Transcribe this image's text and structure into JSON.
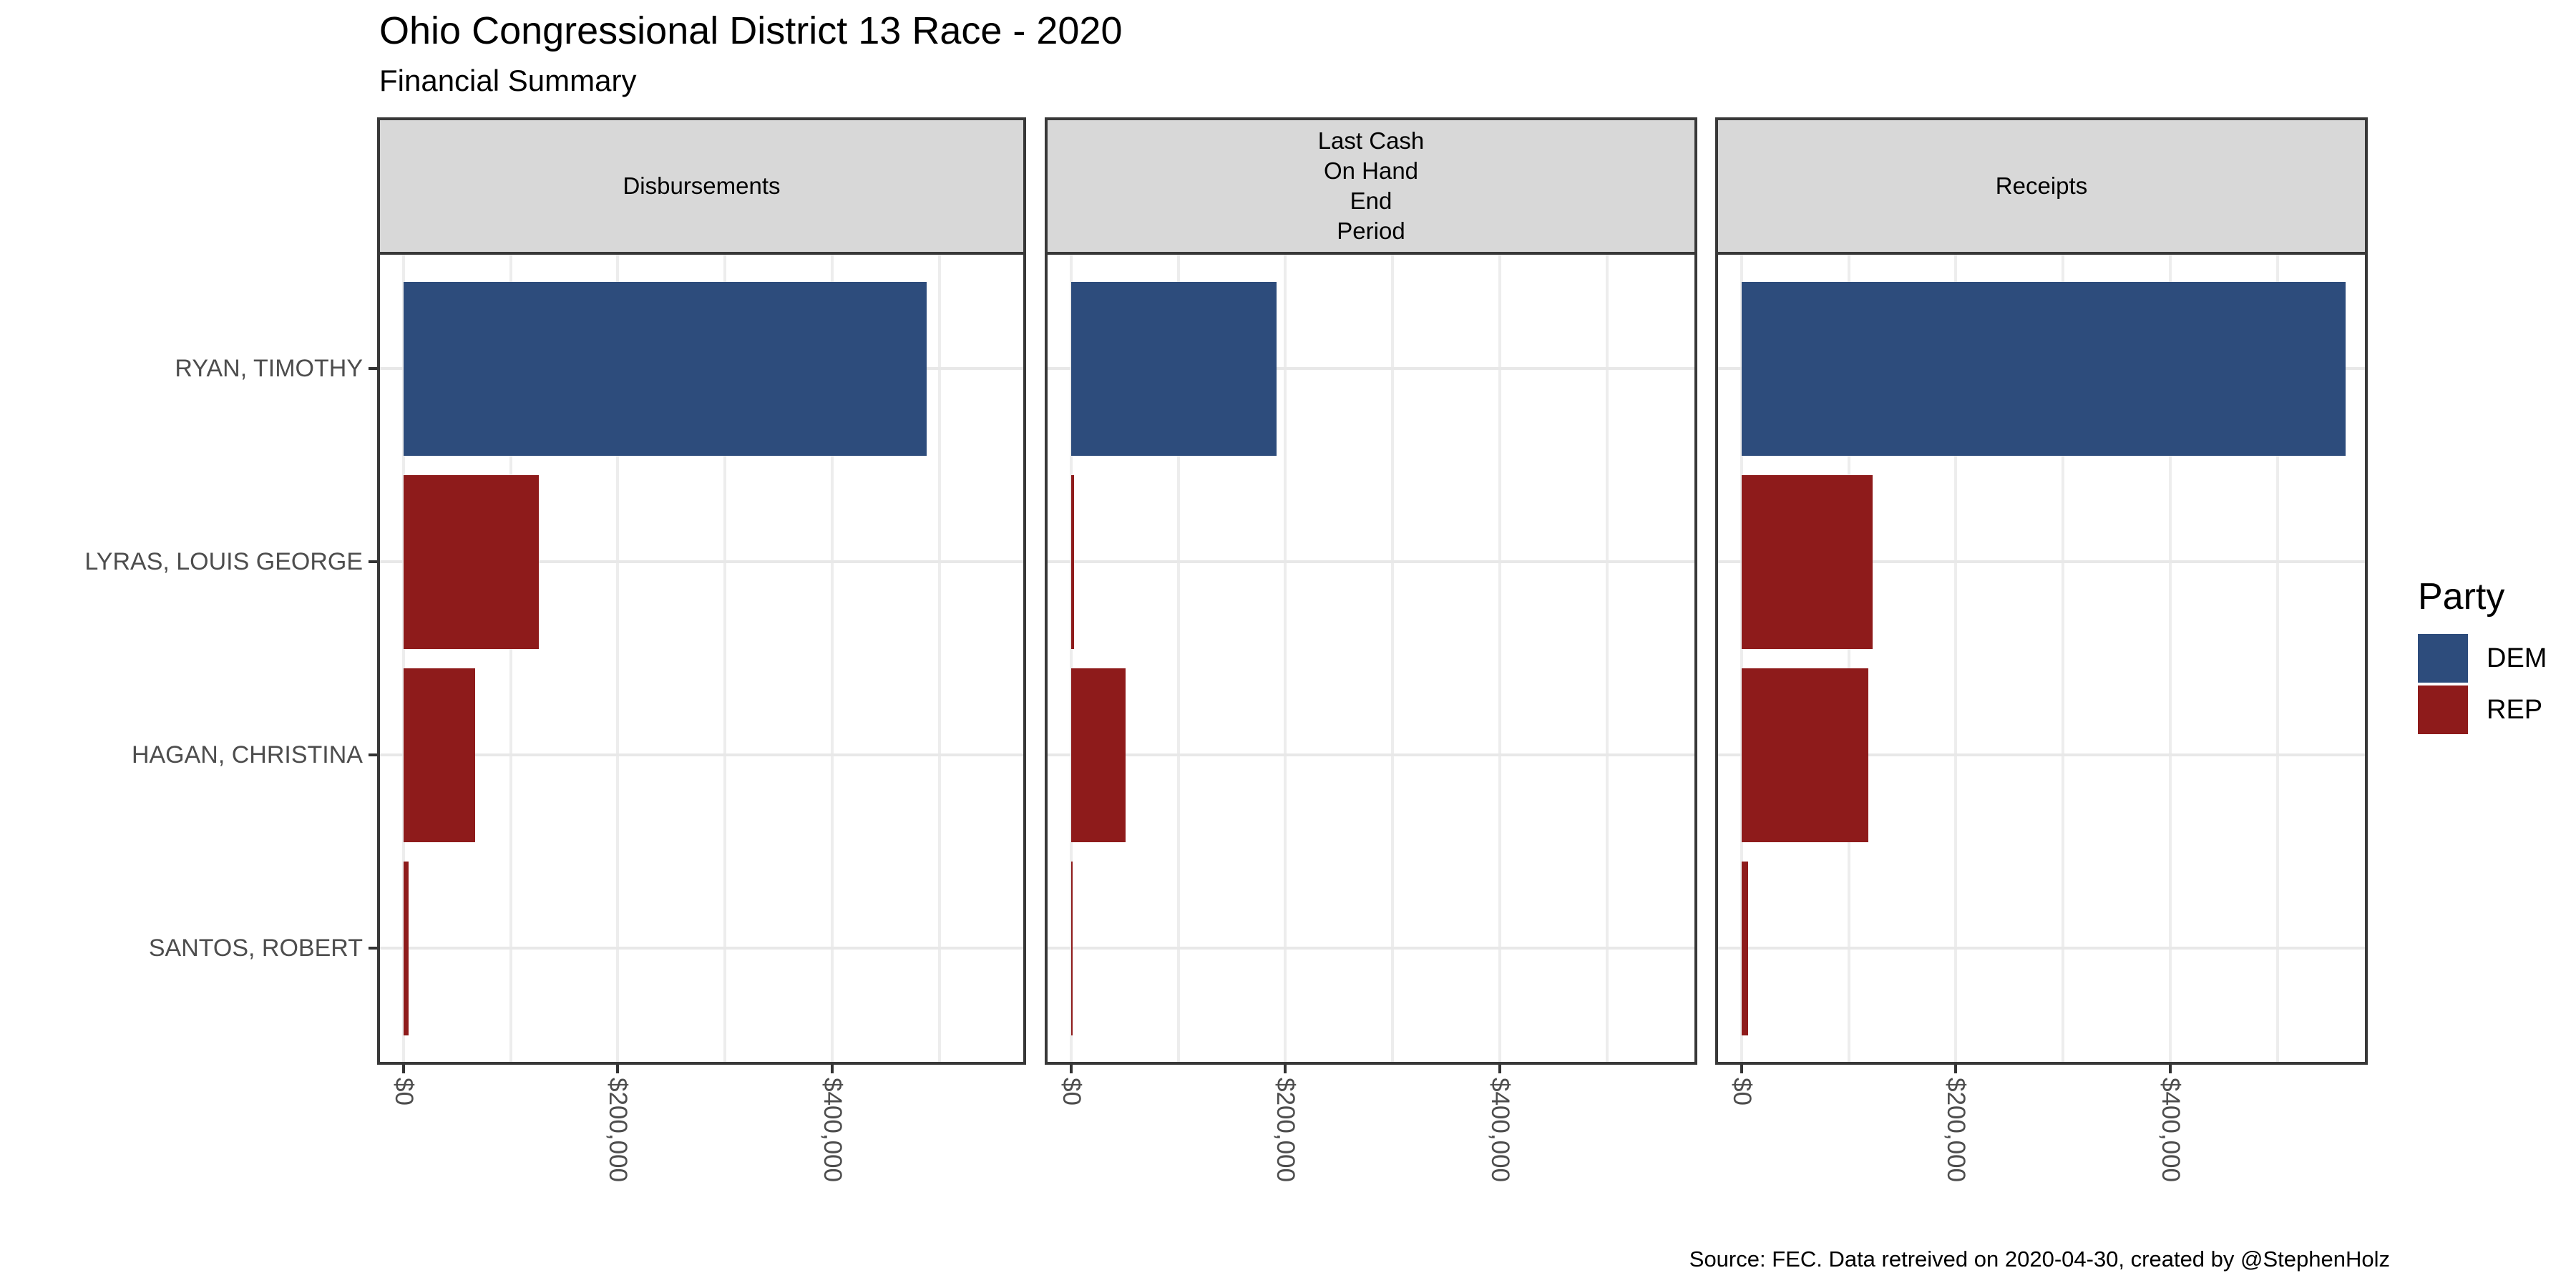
{
  "title": "Ohio Congressional District 13 Race - 2020",
  "subtitle": "Financial Summary",
  "caption": "Source: FEC. Data retreived on 2020-04-30, created by @StephenHolz",
  "legend": {
    "title": "Party",
    "entries": [
      {
        "label": "DEM",
        "color": "#2D4C7C"
      },
      {
        "label": "REP",
        "color": "#8E1B1B"
      }
    ]
  },
  "chart_data": {
    "type": "bar",
    "orientation": "horizontal",
    "title": "Ohio Congressional District 13 Race - 2020",
    "subtitle": "Financial Summary",
    "facet_labels": [
      "Disbursements",
      "Last Cash\nOn Hand\nEnd\nPeriod",
      "Receipts"
    ],
    "categories": [
      "RYAN, TIMOTHY",
      "LYRAS, LOUIS GEORGE",
      "HAGAN, CHRISTINA",
      "SANTOS, ROBERT"
    ],
    "category_parties": [
      "DEM",
      "REP",
      "REP",
      "REP"
    ],
    "series": [
      {
        "facet": "Disbursements",
        "values": [
          488000,
          126000,
          67000,
          5000
        ]
      },
      {
        "facet": "Last Cash On Hand End Period",
        "values": [
          192000,
          3000,
          51000,
          1500
        ]
      },
      {
        "facet": "Receipts",
        "values": [
          564000,
          122000,
          118000,
          6000
        ]
      }
    ],
    "value_unit": "USD",
    "x_axis": {
      "tick_values": [
        0,
        200000,
        400000
      ],
      "tick_labels": [
        "$0",
        "$200,000",
        "$400,000"
      ],
      "minor_grid_step": 100000,
      "range": [
        0,
        582000
      ],
      "grid": true,
      "tick_label_rotation_deg": 90
    },
    "legend_title": "Party",
    "legend_position": "right",
    "party_colors": {
      "DEM": "#2D4C7C",
      "REP": "#8E1B1B"
    },
    "grid": true
  }
}
